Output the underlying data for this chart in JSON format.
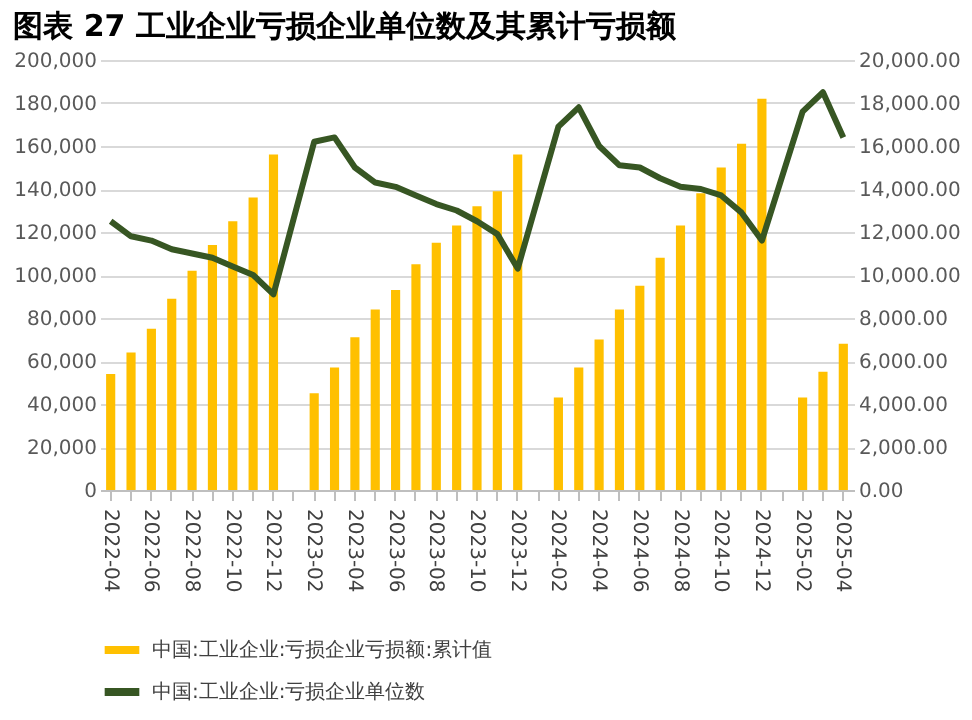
{
  "chart_data": {
    "type": "bar",
    "title": "图表 27   工业企业亏损企业单位数及其累计亏损额",
    "categories": [
      "2022-04",
      null,
      "2022-06",
      null,
      "2022-08",
      null,
      "2022-10",
      null,
      "2022-12",
      null,
      "2023-02",
      null,
      "2023-04",
      null,
      "2023-06",
      null,
      "2023-08",
      null,
      "2023-10",
      null,
      "2023-12",
      null,
      "2024-02",
      null,
      "2024-04",
      null,
      "2024-06",
      null,
      "2024-08",
      null,
      "2024-10",
      null,
      "2024-12",
      null,
      "2025-02",
      null,
      "2025-04"
    ],
    "series": [
      {
        "name": "中国:工业企业:亏损企业亏损额:累计值",
        "axis": "y2",
        "color": "#ffc000",
        "values": [
          5400,
          6400,
          7500,
          8900,
          10200,
          11400,
          12500,
          13600,
          15600,
          null,
          4500,
          5700,
          7100,
          8400,
          9300,
          10500,
          11500,
          12300,
          13200,
          13900,
          15600,
          null,
          4300,
          5700,
          7000,
          8400,
          9500,
          10800,
          12300,
          13800,
          15000,
          16100,
          18200,
          null,
          4300,
          5500,
          6800
        ]
      },
      {
        "name": "中国:工业企业:亏损企业单位数",
        "type": "line",
        "color": "#375623",
        "values": [
          125000,
          118000,
          116000,
          112000,
          110000,
          108000,
          104000,
          100000,
          91000,
          null,
          162000,
          164000,
          150000,
          143000,
          141000,
          137000,
          133000,
          130000,
          125000,
          119000,
          103000,
          null,
          169000,
          178000,
          160000,
          151000,
          150000,
          145000,
          141000,
          140000,
          137000,
          129000,
          116000,
          null,
          176000,
          185000,
          164000
        ]
      }
    ],
    "ylim": [
      0,
      200000
    ],
    "yticks": [
      {
        "value": 0,
        "label": "0"
      },
      {
        "value": 20000,
        "label": "20,000"
      },
      {
        "value": 40000,
        "label": "40,000"
      },
      {
        "value": 60000,
        "label": "60,000"
      },
      {
        "value": 80000,
        "label": "80,000"
      },
      {
        "value": 100000,
        "label": "100,000"
      },
      {
        "value": 120000,
        "label": "120,000"
      },
      {
        "value": 140000,
        "label": "140,000"
      },
      {
        "value": 160000,
        "label": "160,000"
      },
      {
        "value": 180000,
        "label": "180,000"
      },
      {
        "value": 200000,
        "label": "200,000"
      }
    ],
    "y2lim": [
      0,
      20000
    ],
    "y2ticks": [
      {
        "value": 0,
        "label": "0.00"
      },
      {
        "value": 2000,
        "label": "2,000.00"
      },
      {
        "value": 4000,
        "label": "4,000.00"
      },
      {
        "value": 6000,
        "label": "6,000.00"
      },
      {
        "value": 8000,
        "label": "8,000.00"
      },
      {
        "value": 10000,
        "label": "10,000.00"
      },
      {
        "value": 12000,
        "label": "12,000.00"
      },
      {
        "value": 14000,
        "label": "14,000.00"
      },
      {
        "value": 16000,
        "label": "16,000.00"
      },
      {
        "value": 18000,
        "label": "18,000.00"
      },
      {
        "value": 20000,
        "label": "20,000.00"
      }
    ],
    "grid": "y",
    "legend": "bottom"
  }
}
